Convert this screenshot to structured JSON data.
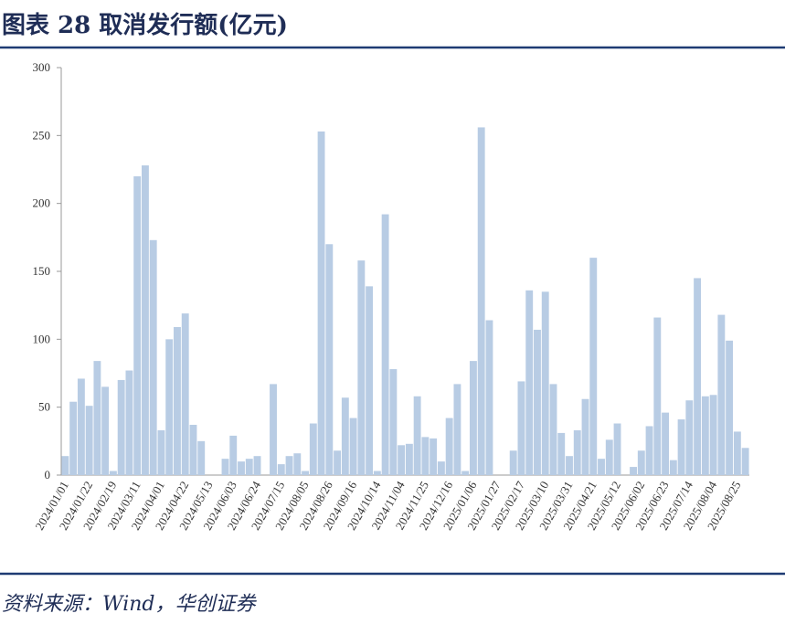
{
  "chart_data": {
    "type": "bar",
    "title": "图表 28 取消发行额(亿元)",
    "source": "资料来源：Wind，华创证券",
    "categories": [
      "2024/01/01",
      null,
      null,
      "2024/01/22",
      null,
      null,
      "2024/02/19",
      null,
      null,
      "2024/03/11",
      null,
      null,
      "2024/04/01",
      null,
      null,
      "2024/04/22",
      null,
      null,
      "2024/05/13",
      null,
      null,
      "2024/06/03",
      null,
      null,
      "2024/06/24",
      null,
      null,
      "2024/07/15",
      null,
      null,
      "2024/08/05",
      null,
      null,
      "2024/08/26",
      null,
      null,
      "2024/09/16",
      null,
      null,
      "2024/10/14",
      null,
      null,
      "2024/11/04",
      null,
      null,
      "2024/11/25",
      null,
      null,
      "2024/12/16",
      null,
      null,
      "2025/01/06",
      null,
      null,
      "2025/01/27",
      null,
      null,
      "2025/02/17",
      null,
      null,
      "2025/03/10",
      null,
      null,
      "2025/03/31",
      null,
      null,
      "2025/04/21",
      null,
      null,
      "2025/05/12",
      null,
      null,
      "2025/06/02",
      null,
      null,
      "2025/06/23",
      null,
      null,
      "2025/07/14",
      null,
      null,
      "2025/08/04",
      null,
      null,
      "2025/08/25",
      null
    ],
    "values": [
      14,
      54,
      71,
      51,
      84,
      65,
      3,
      70,
      77,
      220,
      228,
      173,
      33,
      100,
      109,
      119,
      37,
      25,
      0,
      0,
      12,
      29,
      10,
      12,
      14,
      0,
      67,
      8,
      14,
      16,
      3,
      38,
      253,
      170,
      18,
      57,
      42,
      158,
      139,
      3,
      192,
      78,
      22,
      23,
      58,
      28,
      27,
      10,
      42,
      67,
      3,
      84,
      256,
      114,
      0,
      0,
      18,
      69,
      136,
      107,
      135,
      67,
      31,
      14,
      33,
      56,
      160,
      12,
      26,
      38,
      0,
      6,
      18,
      36,
      116,
      46,
      11,
      41,
      55,
      145,
      58,
      59,
      118,
      99,
      32,
      20
    ],
    "color": "#b8cce4",
    "ylim": [
      0,
      300
    ],
    "yticks": [
      0,
      50,
      100,
      150,
      200,
      250,
      300
    ]
  }
}
